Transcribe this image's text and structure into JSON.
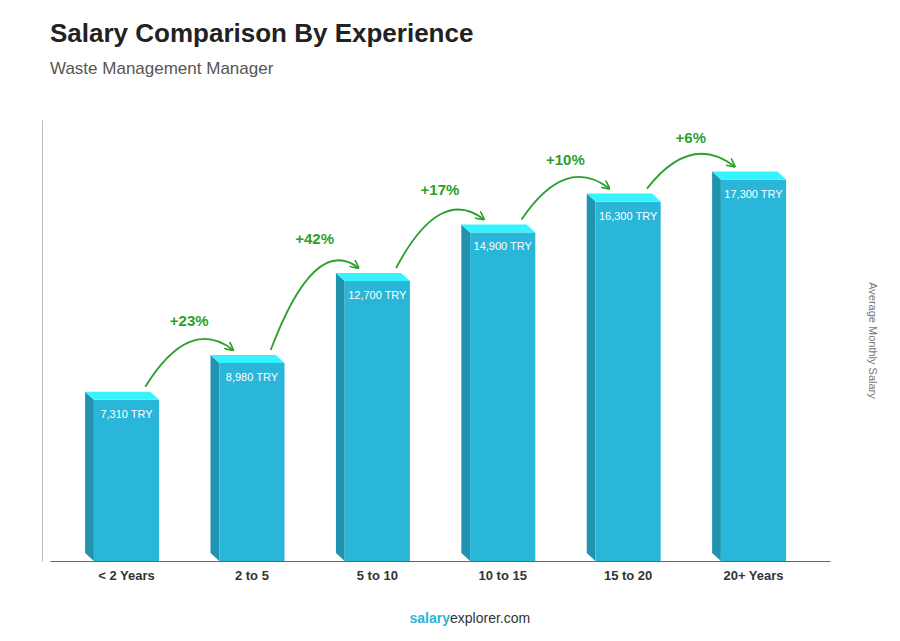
{
  "chart_data": {
    "type": "bar",
    "title": "Salary Comparison By Experience",
    "subtitle": "Waste Management Manager",
    "ylabel": "Average Monthly Salary",
    "categories": [
      "< 2 Years",
      "2 to 5",
      "5 to 10",
      "10 to 15",
      "15 to 20",
      "20+ Years"
    ],
    "values": [
      7310,
      8980,
      12700,
      14900,
      16300,
      17300
    ],
    "value_labels": [
      "7,310 TRY",
      "8,980 TRY",
      "12,700 TRY",
      "14,900 TRY",
      "16,300 TRY",
      "17,300 TRY"
    ],
    "data_labels": true,
    "annotations": [
      "+23%",
      "+42%",
      "+17%",
      "+10%",
      "+6%"
    ],
    "footer": [
      "salary",
      "explorer.com"
    ],
    "color": "#29b6d8",
    "ylim": [
      0,
      20000
    ],
    "tick_labels": "x"
  }
}
